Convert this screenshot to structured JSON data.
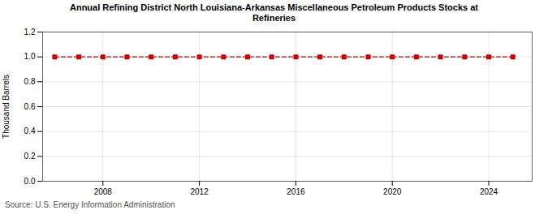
{
  "chart_data": {
    "type": "line",
    "title": "Annual Refining District North Louisiana-Arkansas Miscellaneous Petroleum Products Stocks at\nRefineries",
    "ylabel": "Thousand Barrels",
    "source": "Source: U.S. Energy Information Administration",
    "x": [
      2006,
      2007,
      2008,
      2009,
      2010,
      2011,
      2012,
      2013,
      2014,
      2015,
      2016,
      2017,
      2018,
      2019,
      2020,
      2021,
      2022,
      2023,
      2024,
      2025
    ],
    "values": [
      1,
      1,
      1,
      1,
      1,
      1,
      1,
      1,
      1,
      1,
      1,
      1,
      1,
      1,
      1,
      1,
      1,
      1,
      1,
      1
    ],
    "color": "#cc0000",
    "marker": "square",
    "line_style": "dashed",
    "xlim": [
      2005.5,
      2025.8
    ],
    "xticks": [
      2008,
      2012,
      2016,
      2020,
      2024
    ],
    "ylim": [
      0.0,
      1.2
    ],
    "yticks": [
      {
        "value": 0.0,
        "label": "0.0"
      },
      0.2,
      0.4,
      0.6,
      0.8,
      {
        "value": 1.0,
        "label": "1.0"
      },
      1.2
    ],
    "grid": true
  }
}
